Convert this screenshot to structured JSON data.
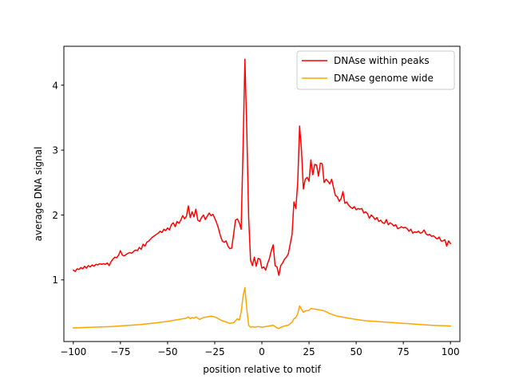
{
  "chart_data": {
    "type": "line",
    "title": "",
    "xlabel": "position relative to motif",
    "ylabel": "average DNA signal",
    "xlim": [
      -105,
      105
    ],
    "ylim": [
      0.05,
      4.6
    ],
    "xticks": [
      -100,
      -75,
      -50,
      -25,
      0,
      25,
      50,
      75,
      100
    ],
    "yticks": [
      1,
      2,
      3,
      4
    ],
    "grid": false,
    "legend_position": "top-right",
    "series": [
      {
        "name": "DNAse within peaks",
        "color": "#ff0000",
        "points": [
          [
            -100,
            1.15
          ],
          [
            -99,
            1.13
          ],
          [
            -98,
            1.17
          ],
          [
            -97,
            1.16
          ],
          [
            -96,
            1.19
          ],
          [
            -95,
            1.17
          ],
          [
            -94,
            1.21
          ],
          [
            -93,
            1.18
          ],
          [
            -92,
            1.22
          ],
          [
            -91,
            1.2
          ],
          [
            -90,
            1.23
          ],
          [
            -89,
            1.21
          ],
          [
            -88,
            1.24
          ],
          [
            -87,
            1.23
          ],
          [
            -86,
            1.25
          ],
          [
            -85,
            1.24
          ],
          [
            -84,
            1.25
          ],
          [
            -83,
            1.24
          ],
          [
            -82,
            1.26
          ],
          [
            -81,
            1.22
          ],
          [
            -80,
            1.28
          ],
          [
            -79,
            1.32
          ],
          [
            -78,
            1.35
          ],
          [
            -77,
            1.34
          ],
          [
            -76,
            1.38
          ],
          [
            -75,
            1.45
          ],
          [
            -74,
            1.38
          ],
          [
            -73,
            1.37
          ],
          [
            -72,
            1.39
          ],
          [
            -71,
            1.41
          ],
          [
            -70,
            1.42
          ],
          [
            -69,
            1.41
          ],
          [
            -68,
            1.44
          ],
          [
            -67,
            1.46
          ],
          [
            -66,
            1.45
          ],
          [
            -65,
            1.5
          ],
          [
            -64,
            1.47
          ],
          [
            -63,
            1.55
          ],
          [
            -62,
            1.52
          ],
          [
            -61,
            1.58
          ],
          [
            -60,
            1.6
          ],
          [
            -59,
            1.63
          ],
          [
            -58,
            1.66
          ],
          [
            -57,
            1.68
          ],
          [
            -56,
            1.7
          ],
          [
            -55,
            1.72
          ],
          [
            -54,
            1.75
          ],
          [
            -53,
            1.73
          ],
          [
            -52,
            1.78
          ],
          [
            -51,
            1.76
          ],
          [
            -50,
            1.8
          ],
          [
            -49,
            1.77
          ],
          [
            -48,
            1.85
          ],
          [
            -47,
            1.88
          ],
          [
            -46,
            1.82
          ],
          [
            -45,
            1.9
          ],
          [
            -44,
            1.87
          ],
          [
            -43,
            1.92
          ],
          [
            -42,
            1.99
          ],
          [
            -41,
            1.94
          ],
          [
            -40,
            1.98
          ],
          [
            -39,
            2.14
          ],
          [
            -38,
            1.96
          ],
          [
            -37,
            2.05
          ],
          [
            -36,
            1.97
          ],
          [
            -35,
            2.09
          ],
          [
            -34,
            1.92
          ],
          [
            -33,
            1.9
          ],
          [
            -32,
            1.96
          ],
          [
            -31,
            2.0
          ],
          [
            -30,
            1.93
          ],
          [
            -29,
            1.98
          ],
          [
            -28,
            2.03
          ],
          [
            -27,
            1.99
          ],
          [
            -26,
            2.01
          ],
          [
            -25,
            1.95
          ],
          [
            -24,
            1.88
          ],
          [
            -23,
            1.79
          ],
          [
            -22,
            1.68
          ],
          [
            -21,
            1.6
          ],
          [
            -20,
            1.58
          ],
          [
            -19,
            1.6
          ],
          [
            -18,
            1.52
          ],
          [
            -17,
            1.48
          ],
          [
            -16,
            1.49
          ],
          [
            -15,
            1.7
          ],
          [
            -14,
            1.92
          ],
          [
            -13,
            1.94
          ],
          [
            -12,
            1.88
          ],
          [
            -11,
            1.78
          ],
          [
            -10,
            3.0
          ],
          [
            -9,
            4.4
          ],
          [
            -8,
            3.3
          ],
          [
            -7,
            1.95
          ],
          [
            -6,
            1.3
          ],
          [
            -5,
            1.22
          ],
          [
            -4,
            1.35
          ],
          [
            -3,
            1.21
          ],
          [
            -2,
            1.33
          ],
          [
            -1,
            1.32
          ],
          [
            0,
            1.18
          ],
          [
            1,
            1.2
          ],
          [
            2,
            1.15
          ],
          [
            3,
            1.25
          ],
          [
            4,
            1.33
          ],
          [
            5,
            1.45
          ],
          [
            6,
            1.54
          ],
          [
            7,
            1.22
          ],
          [
            8,
            1.2
          ],
          [
            9,
            1.07
          ],
          [
            10,
            1.22
          ],
          [
            11,
            1.26
          ],
          [
            12,
            1.32
          ],
          [
            13,
            1.35
          ],
          [
            14,
            1.4
          ],
          [
            15,
            1.55
          ],
          [
            16,
            1.7
          ],
          [
            17,
            2.2
          ],
          [
            18,
            2.1
          ],
          [
            19,
            2.5
          ],
          [
            20,
            3.37
          ],
          [
            21,
            3.0
          ],
          [
            22,
            2.4
          ],
          [
            23,
            2.55
          ],
          [
            24,
            2.58
          ],
          [
            25,
            2.52
          ],
          [
            26,
            2.85
          ],
          [
            27,
            2.62
          ],
          [
            28,
            2.78
          ],
          [
            29,
            2.77
          ],
          [
            30,
            2.6
          ],
          [
            31,
            2.8
          ],
          [
            32,
            2.79
          ],
          [
            33,
            2.5
          ],
          [
            34,
            2.55
          ],
          [
            35,
            2.52
          ],
          [
            36,
            2.48
          ],
          [
            37,
            2.55
          ],
          [
            38,
            2.42
          ],
          [
            39,
            2.3
          ],
          [
            40,
            2.28
          ],
          [
            41,
            2.21
          ],
          [
            42,
            2.25
          ],
          [
            43,
            2.36
          ],
          [
            44,
            2.18
          ],
          [
            45,
            2.2
          ],
          [
            46,
            2.15
          ],
          [
            47,
            2.12
          ],
          [
            48,
            2.1
          ],
          [
            49,
            2.13
          ],
          [
            50,
            2.08
          ],
          [
            51,
            2.1
          ],
          [
            52,
            2.09
          ],
          [
            53,
            2.1
          ],
          [
            54,
            2.03
          ],
          [
            55,
            2.05
          ],
          [
            56,
            2.02
          ],
          [
            57,
            1.95
          ],
          [
            58,
            2.0
          ],
          [
            59,
            1.97
          ],
          [
            60,
            1.93
          ],
          [
            61,
            1.96
          ],
          [
            62,
            1.9
          ],
          [
            63,
            1.92
          ],
          [
            64,
            1.88
          ],
          [
            65,
            1.87
          ],
          [
            66,
            1.93
          ],
          [
            67,
            1.85
          ],
          [
            68,
            1.88
          ],
          [
            69,
            1.86
          ],
          [
            70,
            1.83
          ],
          [
            71,
            1.85
          ],
          [
            72,
            1.79
          ],
          [
            73,
            1.8
          ],
          [
            74,
            1.82
          ],
          [
            75,
            1.8
          ],
          [
            76,
            1.81
          ],
          [
            77,
            1.79
          ],
          [
            78,
            1.75
          ],
          [
            79,
            1.78
          ],
          [
            80,
            1.72
          ],
          [
            81,
            1.74
          ],
          [
            82,
            1.73
          ],
          [
            83,
            1.75
          ],
          [
            84,
            1.72
          ],
          [
            85,
            1.73
          ],
          [
            86,
            1.77
          ],
          [
            87,
            1.71
          ],
          [
            88,
            1.69
          ],
          [
            89,
            1.7
          ],
          [
            90,
            1.67
          ],
          [
            91,
            1.68
          ],
          [
            92,
            1.65
          ],
          [
            93,
            1.63
          ],
          [
            94,
            1.66
          ],
          [
            95,
            1.6
          ],
          [
            96,
            1.6
          ],
          [
            97,
            1.62
          ],
          [
            98,
            1.52
          ],
          [
            99,
            1.6
          ],
          [
            100,
            1.56
          ]
        ]
      },
      {
        "name": "DNAse genome wide",
        "color": "#ffa500",
        "points": [
          [
            -100,
            0.26
          ],
          [
            -95,
            0.265
          ],
          [
            -90,
            0.27
          ],
          [
            -85,
            0.275
          ],
          [
            -80,
            0.28
          ],
          [
            -75,
            0.29
          ],
          [
            -70,
            0.3
          ],
          [
            -65,
            0.31
          ],
          [
            -60,
            0.325
          ],
          [
            -55,
            0.34
          ],
          [
            -50,
            0.36
          ],
          [
            -48,
            0.37
          ],
          [
            -46,
            0.38
          ],
          [
            -44,
            0.39
          ],
          [
            -42,
            0.4
          ],
          [
            -40,
            0.41
          ],
          [
            -39,
            0.43
          ],
          [
            -38,
            0.4
          ],
          [
            -37,
            0.42
          ],
          [
            -36,
            0.41
          ],
          [
            -35,
            0.43
          ],
          [
            -33,
            0.39
          ],
          [
            -31,
            0.42
          ],
          [
            -29,
            0.43
          ],
          [
            -27,
            0.44
          ],
          [
            -25,
            0.43
          ],
          [
            -23,
            0.4
          ],
          [
            -21,
            0.37
          ],
          [
            -19,
            0.35
          ],
          [
            -17,
            0.33
          ],
          [
            -15,
            0.34
          ],
          [
            -14,
            0.37
          ],
          [
            -13,
            0.4
          ],
          [
            -12,
            0.38
          ],
          [
            -11,
            0.5
          ],
          [
            -10,
            0.75
          ],
          [
            -9,
            0.88
          ],
          [
            -8,
            0.55
          ],
          [
            -7,
            0.3
          ],
          [
            -6,
            0.27
          ],
          [
            -5,
            0.28
          ],
          [
            -4,
            0.27
          ],
          [
            -2,
            0.28
          ],
          [
            0,
            0.27
          ],
          [
            2,
            0.28
          ],
          [
            4,
            0.29
          ],
          [
            6,
            0.3
          ],
          [
            8,
            0.26
          ],
          [
            9,
            0.25
          ],
          [
            10,
            0.27
          ],
          [
            12,
            0.29
          ],
          [
            14,
            0.3
          ],
          [
            16,
            0.35
          ],
          [
            17,
            0.4
          ],
          [
            18,
            0.42
          ],
          [
            19,
            0.48
          ],
          [
            20,
            0.6
          ],
          [
            21,
            0.55
          ],
          [
            22,
            0.5
          ],
          [
            23,
            0.52
          ],
          [
            25,
            0.53
          ],
          [
            26,
            0.56
          ],
          [
            28,
            0.55
          ],
          [
            30,
            0.54
          ],
          [
            32,
            0.53
          ],
          [
            34,
            0.51
          ],
          [
            36,
            0.48
          ],
          [
            38,
            0.46
          ],
          [
            40,
            0.44
          ],
          [
            42,
            0.43
          ],
          [
            44,
            0.42
          ],
          [
            46,
            0.41
          ],
          [
            50,
            0.39
          ],
          [
            55,
            0.37
          ],
          [
            60,
            0.36
          ],
          [
            65,
            0.35
          ],
          [
            70,
            0.34
          ],
          [
            75,
            0.33
          ],
          [
            80,
            0.32
          ],
          [
            85,
            0.31
          ],
          [
            90,
            0.3
          ],
          [
            95,
            0.295
          ],
          [
            100,
            0.29
          ]
        ]
      }
    ]
  }
}
